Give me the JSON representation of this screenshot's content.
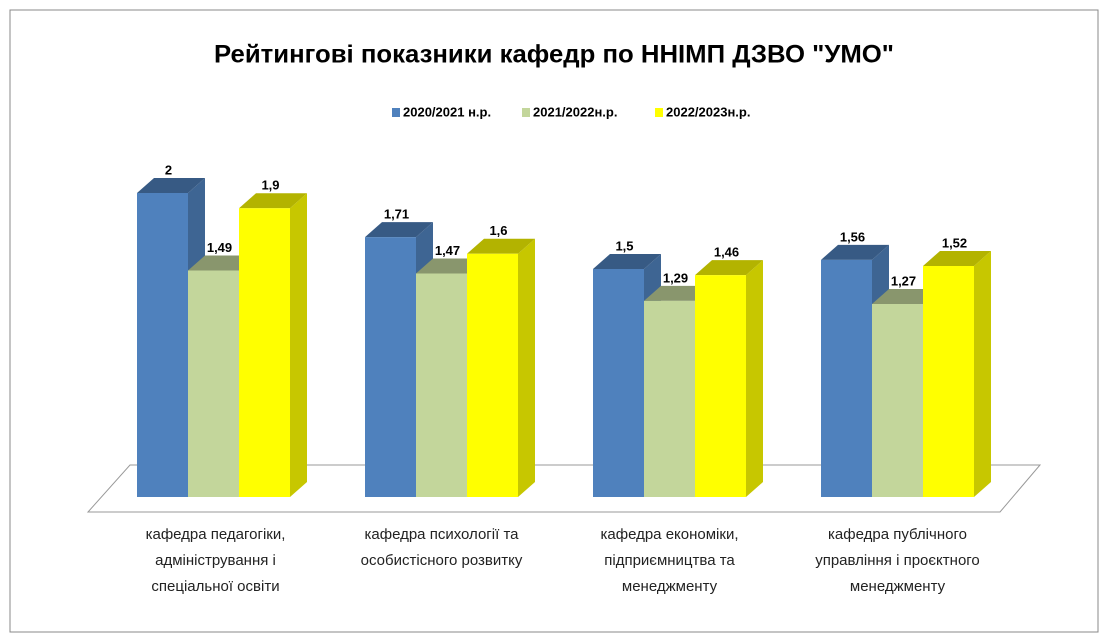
{
  "chart_data": {
    "type": "bar3d",
    "title": "Рейтингові показники кафедр по ННІМП  ДЗВО \"УМО\"",
    "categories": [
      "кафедра педагогіки, адміністрування і спеціальної освіти",
      "кафедра психології та особистісного розвитку",
      "кафедра економіки, підприємництва та менеджменту",
      "кафедра  публічного управління і проєктного менеджменту"
    ],
    "series": [
      {
        "name": "2020/2021 н.р.",
        "color": "#4f81bd",
        "values": [
          2,
          1.71,
          1.5,
          1.56
        ],
        "value_labels": [
          "2",
          "1,71",
          "1,5",
          "1,56"
        ]
      },
      {
        "name": "2021/2022н.р.",
        "color": "#c3d69b",
        "values": [
          1.49,
          1.47,
          1.29,
          1.27
        ],
        "value_labels": [
          "1,49",
          "1,47",
          "1,29",
          "1,27"
        ]
      },
      {
        "name": "2022/2023н.р.",
        "color": "#ffff00",
        "values": [
          1.9,
          1.6,
          1.46,
          1.52
        ],
        "value_labels": [
          "1,9",
          "1,6",
          "1,46",
          "1,52"
        ]
      }
    ],
    "legend": "top"
  }
}
